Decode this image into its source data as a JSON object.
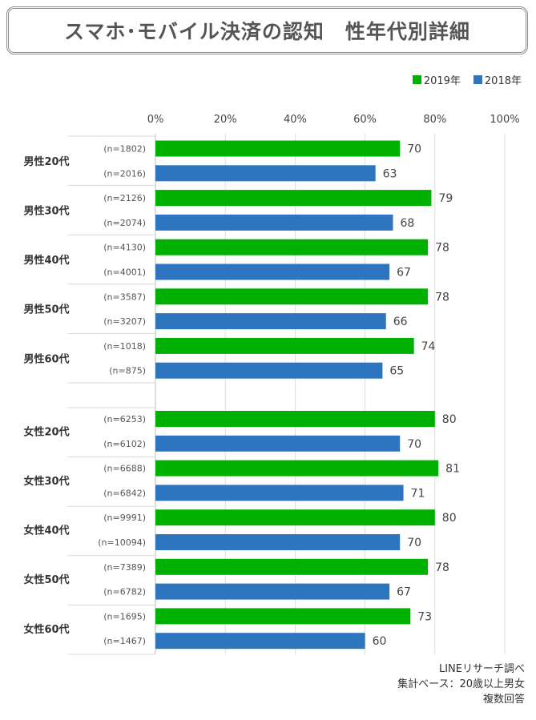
{
  "title": "スマホ･モバイル決済の認知　性年代別詳細",
  "colors": {
    "y2019": "#00b000",
    "y2018": "#2e75c0",
    "grid": "#dddddd"
  },
  "legend": {
    "y2019": "2019年",
    "y2018": "2018年"
  },
  "notes": {
    "source": "LINEリサーチ調べ",
    "base": "集計ベース：20歳以上男女",
    "answer": "複数回答"
  },
  "chart_data": {
    "type": "bar",
    "orientation": "horizontal",
    "xlim": [
      0,
      100
    ],
    "ticks": [
      "0%",
      "20%",
      "40%",
      "60%",
      "80%",
      "100%"
    ],
    "tick_values": [
      0,
      20,
      40,
      60,
      80,
      100
    ],
    "grid": true,
    "legend_position": "top-right",
    "groups": [
      {
        "label": "男性20代",
        "bars": [
          {
            "series": "2019年",
            "n": "(n=1802)",
            "value": 70
          },
          {
            "series": "2018年",
            "n": "(n=2016)",
            "value": 63
          }
        ]
      },
      {
        "label": "男性30代",
        "bars": [
          {
            "series": "2019年",
            "n": "(n=2126)",
            "value": 79
          },
          {
            "series": "2018年",
            "n": "(n=2074)",
            "value": 68
          }
        ]
      },
      {
        "label": "男性40代",
        "bars": [
          {
            "series": "2019年",
            "n": "(n=4130)",
            "value": 78
          },
          {
            "series": "2018年",
            "n": "(n=4001)",
            "value": 67
          }
        ]
      },
      {
        "label": "男性50代",
        "bars": [
          {
            "series": "2019年",
            "n": "(n=3587)",
            "value": 78
          },
          {
            "series": "2018年",
            "n": "(n=3207)",
            "value": 66
          }
        ]
      },
      {
        "label": "男性60代",
        "bars": [
          {
            "series": "2019年",
            "n": "(n=1018)",
            "value": 74
          },
          {
            "series": "2018年",
            "n": "(n=875)",
            "value": 65
          }
        ]
      },
      {
        "label": "女性20代",
        "bars": [
          {
            "series": "2019年",
            "n": "(n=6253)",
            "value": 80
          },
          {
            "series": "2018年",
            "n": "(n=6102)",
            "value": 70
          }
        ]
      },
      {
        "label": "女性30代",
        "bars": [
          {
            "series": "2019年",
            "n": "(n=6688)",
            "value": 81
          },
          {
            "series": "2018年",
            "n": "(n=6842)",
            "value": 71
          }
        ]
      },
      {
        "label": "女性40代",
        "bars": [
          {
            "series": "2019年",
            "n": "(n=9991)",
            "value": 80
          },
          {
            "series": "2018年",
            "n": "(n=10094)",
            "value": 70
          }
        ]
      },
      {
        "label": "女性50代",
        "bars": [
          {
            "series": "2019年",
            "n": "(n=7389)",
            "value": 78
          },
          {
            "series": "2018年",
            "n": "(n=6782)",
            "value": 67
          }
        ]
      },
      {
        "label": "女性60代",
        "bars": [
          {
            "series": "2019年",
            "n": "(n=1695)",
            "value": 73
          },
          {
            "series": "2018年",
            "n": "(n=1467)",
            "value": 60
          }
        ]
      }
    ]
  }
}
